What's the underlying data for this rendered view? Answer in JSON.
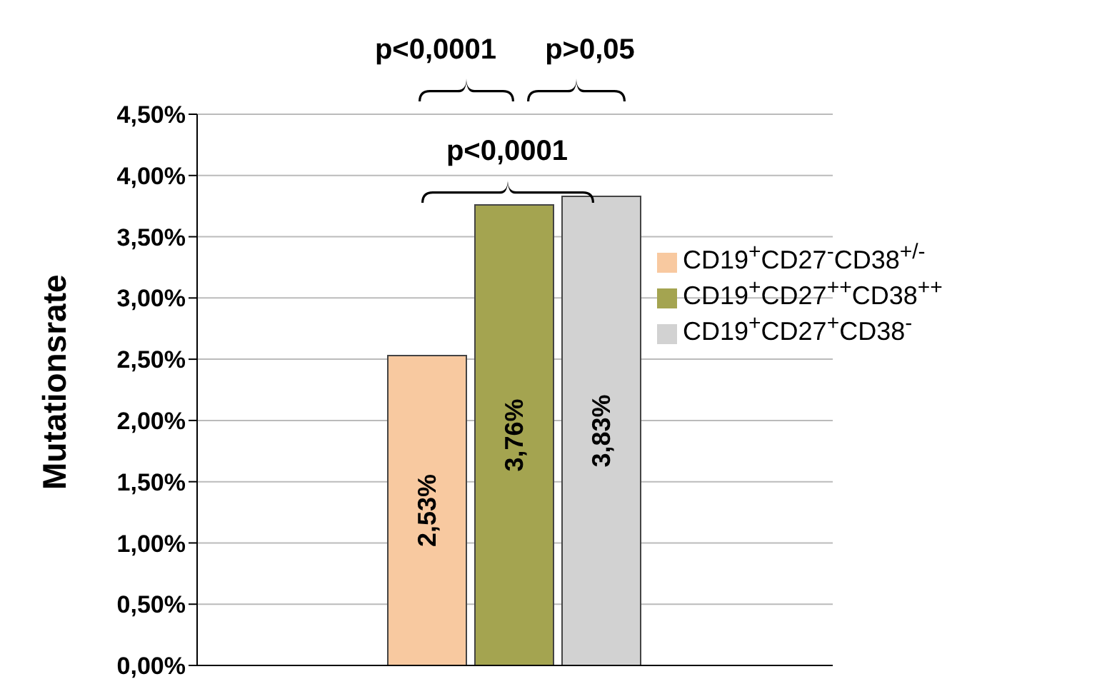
{
  "chart_data": {
    "type": "bar",
    "ylabel": "Mutationsrate",
    "categories": [
      null
    ],
    "series": [
      {
        "name": "CD19$^{+}$CD27$^{-}$CD38$^{+/-}$",
        "color": "#f8c9a0",
        "values": [
          2.53
        ],
        "value_labels": [
          "2,53%"
        ]
      },
      {
        "name": "CD19$^{+}$CD27$^{++}$CD38$^{++}$",
        "color": "#a4a450",
        "values": [
          3.76
        ],
        "value_labels": [
          "3,76%"
        ]
      },
      {
        "name": "CD19$^{+}$CD27$^{+}$CD38$^{-}$",
        "color": "#d2d2d2",
        "values": [
          3.83
        ],
        "value_labels": [
          "3,83%"
        ]
      }
    ],
    "ylim": [
      0,
      4.5
    ],
    "yticks": [
      {
        "value": 0,
        "label": "0,00%"
      },
      {
        "value": 0.5,
        "label": "0,50%"
      },
      {
        "value": 1,
        "label": "1,00%"
      },
      {
        "value": 1.5,
        "label": "1,50%"
      },
      {
        "value": 2,
        "label": "2,00%"
      },
      {
        "value": 2.5,
        "label": "2,50%"
      },
      {
        "value": 3,
        "label": "3,00%"
      },
      {
        "value": 3.5,
        "label": "3,50%"
      },
      {
        "value": 4,
        "label": "4,00%"
      },
      {
        "value": 4.5,
        "label": "4,50%"
      }
    ],
    "grid": "y",
    "legend": "top right",
    "annotations": [
      "p<0,0001",
      "p>0,05",
      "p<0,0001"
    ]
  }
}
